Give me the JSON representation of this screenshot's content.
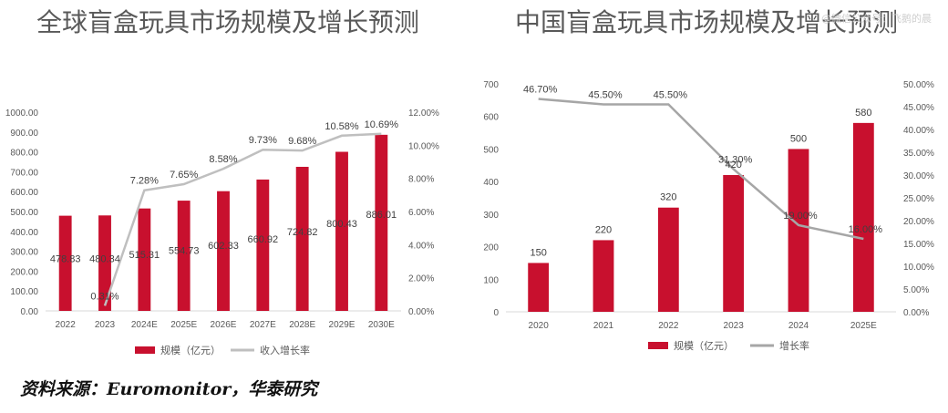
{
  "watermark": "@微信公众号：飞鹅的晨",
  "source": "资料来源：Euromonitor，华泰研究",
  "chart_data": [
    {
      "type": "bar",
      "title": "全球盲盒玩具市场规模及增长预测",
      "categories": [
        "2022",
        "2023",
        "2024E",
        "2025E",
        "2026E",
        "2027E",
        "2028E",
        "2029E",
        "2030E"
      ],
      "bar_series": {
        "name": "规模（亿元）",
        "values": [
          478.83,
          480.34,
          515.31,
          554.73,
          602.33,
          660.92,
          724.82,
          800.43,
          886.01
        ],
        "labels": [
          "478.83",
          "480.34",
          "515.31",
          "554.73",
          "602.33",
          "660.92",
          "724.82",
          "800.43",
          "886.01"
        ]
      },
      "line_series": {
        "name": "收入增长率",
        "values": [
          0.31,
          7.28,
          7.65,
          8.58,
          9.73,
          9.68,
          10.58,
          10.69
        ],
        "labels": [
          "0.31%",
          "7.28%",
          "7.65%",
          "8.58%",
          "9.73%",
          "9.68%",
          "10.58%",
          "10.69%"
        ]
      },
      "y_left": {
        "min": 0,
        "max": 1000,
        "ticks": [
          "0.00",
          "100.00",
          "200.00",
          "300.00",
          "400.00",
          "500.00",
          "600.00",
          "700.00",
          "800.00",
          "900.00",
          "1000.00"
        ]
      },
      "y_right": {
        "min": 0,
        "max": 12,
        "ticks": [
          "0.00%",
          "2.00%",
          "4.00%",
          "6.00%",
          "8.00%",
          "10.00%",
          "12.00%"
        ]
      },
      "legend": [
        "规模（亿元）",
        "收入增长率"
      ],
      "colors": {
        "bar": "#c8102e",
        "line": "#bfbfbf"
      }
    },
    {
      "type": "bar",
      "title": "中国盲盒玩具市场规模及增长预测",
      "categories": [
        "2020",
        "2021",
        "2022",
        "2023",
        "2024",
        "2025E"
      ],
      "bar_series": {
        "name": "规模（亿元）",
        "values": [
          150,
          220,
          320,
          420,
          500,
          580
        ],
        "labels": [
          "150",
          "220",
          "320",
          "420",
          "500",
          "580"
        ]
      },
      "line_series": {
        "name": "增长率",
        "values": [
          46.7,
          45.5,
          45.5,
          31.3,
          19.0,
          16.0
        ],
        "labels": [
          "46.70%",
          "45.50%",
          "45.50%",
          "31.30%",
          "19.00%",
          "16.00%"
        ]
      },
      "y_left": {
        "min": 0,
        "max": 700,
        "ticks": [
          "0",
          "100",
          "200",
          "300",
          "400",
          "500",
          "600",
          "700"
        ]
      },
      "y_right": {
        "min": 0,
        "max": 50,
        "ticks": [
          "0.00%",
          "5.00%",
          "10.00%",
          "15.00%",
          "20.00%",
          "25.00%",
          "30.00%",
          "35.00%",
          "40.00%",
          "45.00%",
          "50.00%"
        ]
      },
      "legend": [
        "规模（亿元）",
        "增长率"
      ],
      "colors": {
        "bar": "#c8102e",
        "line": "#a6a6a6"
      }
    }
  ]
}
